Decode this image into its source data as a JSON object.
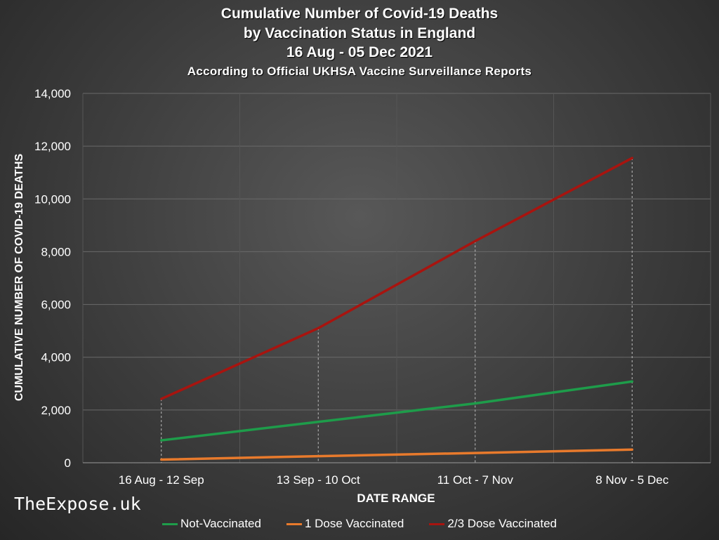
{
  "chart_data": {
    "type": "line",
    "title": "Cumulative Number of Covid-19 Deaths",
    "subtitle_lines": [
      "by Vaccination Status in England",
      "16 Aug - 05 Dec 2021"
    ],
    "source_note": "According to Official UKHSA Vaccine Surveillance Reports",
    "xlabel": "DATE RANGE",
    "ylabel": "CUMULATIVE NUMBER OF COVID-19 DEATHS",
    "categories": [
      "16 Aug - 12 Sep",
      "13 Sep - 10 Oct",
      "11 Oct - 7 Nov",
      "8 Nov - 5 Dec"
    ],
    "ylim": [
      0,
      14000
    ],
    "yticks": [
      0,
      2000,
      4000,
      6000,
      8000,
      10000,
      12000,
      14000
    ],
    "ytick_labels": [
      "0",
      "2,000",
      "4,000",
      "6,000",
      "8,000",
      "10,000",
      "12,000",
      "14,000"
    ],
    "grid": true,
    "legend_position": "bottom",
    "series": [
      {
        "name": "Not-Vaccinated",
        "color": "#1e9c4a",
        "values": [
          850,
          1550,
          2250,
          3080
        ]
      },
      {
        "name": "1 Dose Vaccinated",
        "color": "#e87a2c",
        "values": [
          120,
          250,
          370,
          500
        ]
      },
      {
        "name": "2/3 Dose Vaccinated",
        "color": "#a8140f",
        "values": [
          2420,
          5100,
          8400,
          11550
        ]
      }
    ]
  },
  "watermark": "TheExpose.uk"
}
